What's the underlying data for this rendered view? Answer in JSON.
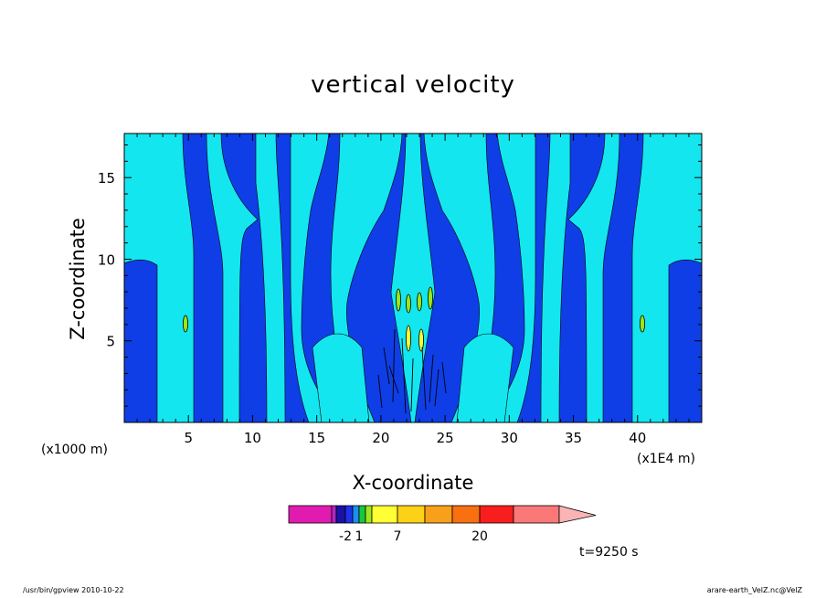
{
  "chart_data": {
    "type": "contour",
    "title": "vertical velocity",
    "xlabel": "X-coordinate",
    "ylabel": "Z-coordinate",
    "x_multiplier": "(x1000 m)",
    "x_unit": "(x1E4 m)",
    "xlim": [
      0,
      45
    ],
    "ylim": [
      0,
      17.7
    ],
    "x_ticks": [
      5,
      10,
      15,
      20,
      25,
      30,
      35,
      40
    ],
    "y_ticks": [
      5,
      10,
      15
    ],
    "colorbar": {
      "labels": [
        {
          "text": "-2",
          "value": -2
        },
        {
          "text": "1",
          "value": 1
        },
        {
          "text": "7",
          "value": 7
        },
        {
          "text": "20",
          "value": 20
        }
      ],
      "colors": [
        "#e11bb0",
        "#b026c4",
        "#1a12a4",
        "#1e32e8",
        "#1e8cf0",
        "#16c83c",
        "#9be61b",
        "#ffff33",
        "#fcd116",
        "#f8a01a",
        "#f87010",
        "#f81e1e",
        "#fa7878",
        "#fab4b4"
      ]
    },
    "dominant_fill_colors": {
      "negative": "#0f3ee6",
      "weak_positive": "#14e6f0",
      "positive_cells": "#9be61b"
    }
  },
  "annotations": {
    "time": "t=9250 s",
    "footer_left": "/usr/bin/gpview   2010-10-22",
    "footer_right": "arare-earth_VelZ.nc@VelZ"
  }
}
